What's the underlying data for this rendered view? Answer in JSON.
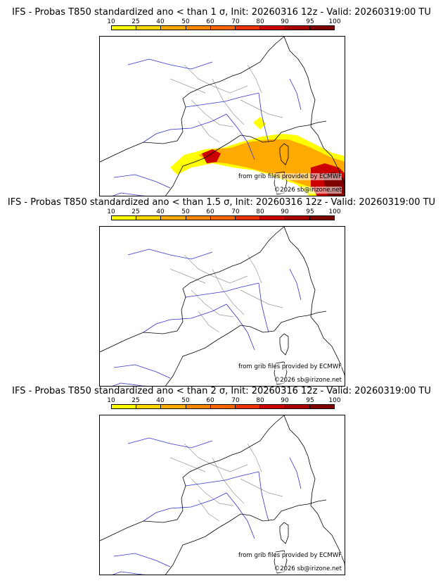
{
  "colors": {
    "scale": [
      "#ffff00",
      "#ffd700",
      "#ffaa00",
      "#ff8800",
      "#ff6600",
      "#ee3300",
      "#cc0000",
      "#aa0000",
      "#800000"
    ],
    "coast": "#000000",
    "rivers": "#3333cc",
    "borders": "#999999"
  },
  "legend": {
    "ticks": [
      "10",
      "25",
      "40",
      "50",
      "60",
      "70",
      "80",
      "90",
      "95",
      "100"
    ]
  },
  "panels": [
    {
      "title": "IFS - Probas T850  standardized ano < than 1 σ, Init: 20260316 12z - Valid: 20260319:00 TU",
      "source_credit": "from grib files provided by ECMWF",
      "copyright": "©2026 sb@irizone.net",
      "shading": true
    },
    {
      "title": "IFS - Probas T850  standardized ano < than 1.5 σ, Init: 20260316 12z - Valid: 20260319:00 TU",
      "source_credit": "from grib files provided by ECMWF",
      "copyright": "©2026 sb@irizone.net",
      "shading": false
    },
    {
      "title": "IFS - Probas T850  standardized ano < than 2 σ, Init: 20260316 12z - Valid: 20260319:00 TU",
      "source_credit": "from grib files provided by ECMWF",
      "copyright": "©2026 sb@irizone.net",
      "shading": false
    }
  ]
}
